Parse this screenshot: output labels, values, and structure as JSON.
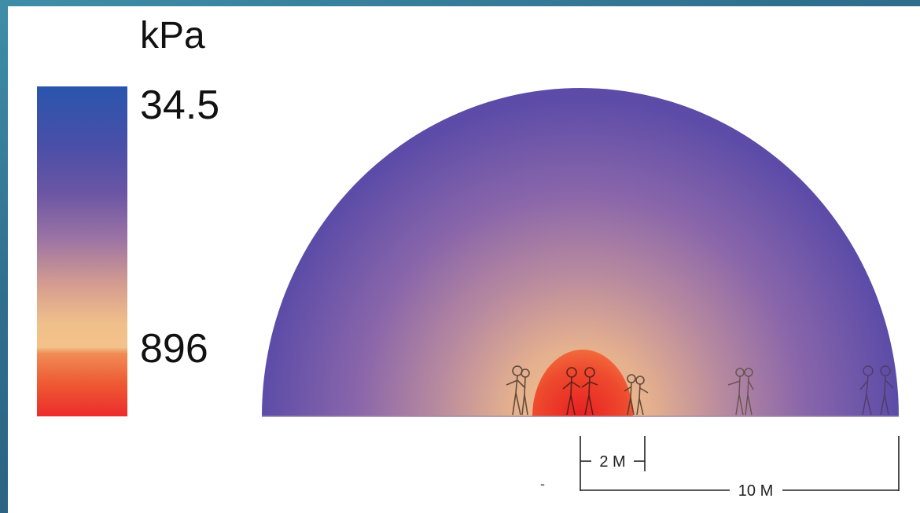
{
  "legend": {
    "unit": "kPa",
    "max_label": "34.5",
    "min_label": "896"
  },
  "dimensions": {
    "inner": "2 M",
    "outer": "10 M",
    "stray_mark": "-"
  },
  "colors": {
    "far": "#5a4fa8",
    "mid": "#a77ea6",
    "near": "#f2c08a",
    "core": "#ea2a2a",
    "background": "#2f6f8e"
  }
}
